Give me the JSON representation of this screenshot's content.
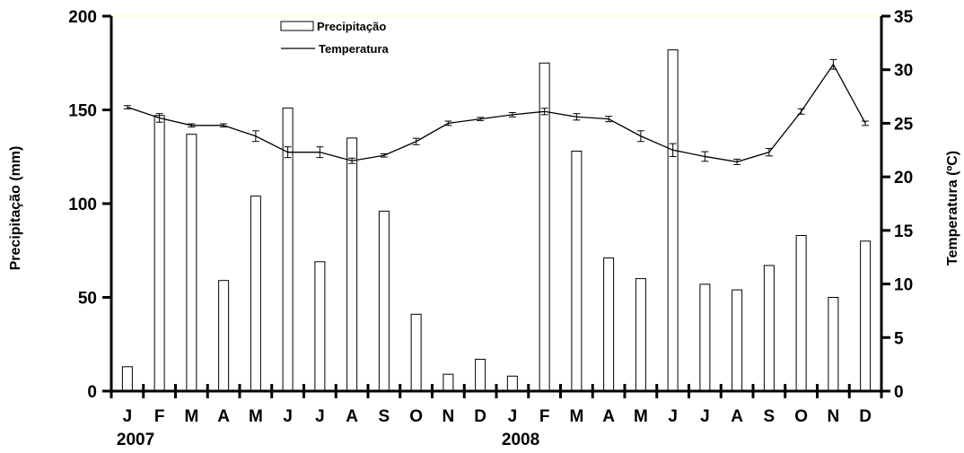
{
  "chart_data": {
    "type": "bar+line",
    "categories": [
      "J",
      "F",
      "M",
      "A",
      "M",
      "J",
      "J",
      "A",
      "S",
      "O",
      "N",
      "D",
      "J",
      "F",
      "M",
      "A",
      "M",
      "J",
      "J",
      "A",
      "S",
      "O",
      "N",
      "D"
    ],
    "year_labels": [
      {
        "text": "2007",
        "index": 0
      },
      {
        "text": "2008",
        "index": 12
      }
    ],
    "series": [
      {
        "name": "Precipitação",
        "type": "bar",
        "axis": "left",
        "values": [
          13,
          147,
          137,
          59,
          104,
          151,
          69,
          135,
          96,
          41,
          9,
          17,
          8,
          175,
          128,
          71,
          60,
          182,
          57,
          54,
          67,
          83,
          50,
          80
        ]
      },
      {
        "name": "Temperatura",
        "type": "line",
        "axis": "right",
        "values": [
          26.5,
          25.5,
          24.8,
          24.8,
          23.8,
          22.3,
          22.3,
          21.5,
          22.0,
          23.3,
          25.0,
          25.4,
          25.8,
          26.1,
          25.6,
          25.4,
          23.8,
          22.5,
          21.9,
          21.4,
          22.3,
          26.1,
          30.5,
          25.0
        ],
        "errors": [
          0.15,
          0.4,
          0.15,
          0.15,
          0.5,
          0.5,
          0.5,
          0.25,
          0.15,
          0.3,
          0.2,
          0.15,
          0.2,
          0.3,
          0.3,
          0.25,
          0.5,
          0.6,
          0.45,
          0.25,
          0.35,
          0.25,
          0.45,
          0.2
        ]
      }
    ],
    "ylabel": "Precipitação (mm)",
    "y2label": "Temperatura  (ºC)",
    "ylim": [
      0,
      200
    ],
    "y2lim": [
      0,
      35
    ],
    "yticks": [
      "0",
      "50",
      "100",
      "150",
      "200"
    ],
    "y2ticks": [
      "0",
      "5",
      "10",
      "15",
      "20",
      "25",
      "30",
      "35"
    ],
    "legend_position": "top-center",
    "grid": false,
    "colors": {
      "bar_fill": "#ffffff",
      "bar_stroke": "#000000",
      "line": "#000000",
      "top_line": "#ffffcc"
    }
  }
}
